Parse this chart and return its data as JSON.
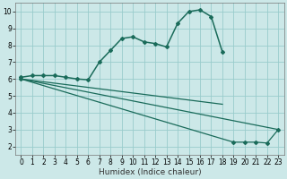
{
  "xlabel": "Humidex (Indice chaleur)",
  "xlim": [
    -0.5,
    23.5
  ],
  "ylim": [
    1.5,
    10.5
  ],
  "bg_color": "#cce8e8",
  "grid_color": "#99cccc",
  "line_color": "#1a6b5a",
  "series": [
    {
      "x": [
        0,
        1,
        2,
        3,
        4,
        5,
        6,
        7,
        8,
        9,
        10,
        11,
        12,
        13,
        14,
        15,
        16,
        17,
        18
      ],
      "y": [
        6.1,
        6.2,
        6.2,
        6.2,
        6.1,
        6.0,
        5.95,
        7.0,
        7.7,
        8.4,
        8.5,
        8.2,
        8.1,
        7.9,
        9.3,
        10.0,
        10.1,
        9.7,
        7.6
      ],
      "marker": "D",
      "markersize": 2.0,
      "linewidth": 1.1,
      "linestyle": "-"
    },
    {
      "x": [
        0,
        18
      ],
      "y": [
        6.0,
        4.5
      ],
      "marker": null,
      "markersize": 0,
      "linewidth": 0.9,
      "linestyle": "-"
    },
    {
      "x": [
        0,
        23
      ],
      "y": [
        6.0,
        3.0
      ],
      "marker": null,
      "markersize": 0,
      "linewidth": 0.9,
      "linestyle": "-"
    },
    {
      "x": [
        0,
        19,
        20,
        21,
        22,
        23
      ],
      "y": [
        6.0,
        2.25,
        2.25,
        2.25,
        2.2,
        3.0
      ],
      "marker": "D",
      "markersize": 2.0,
      "linewidth": 0.9,
      "linestyle": "-"
    }
  ],
  "xticks": [
    0,
    1,
    2,
    3,
    4,
    5,
    6,
    7,
    8,
    9,
    10,
    11,
    12,
    13,
    14,
    15,
    16,
    17,
    18,
    19,
    20,
    21,
    22,
    23
  ],
  "yticks": [
    2,
    3,
    4,
    5,
    6,
    7,
    8,
    9,
    10
  ],
  "tick_fontsize": 5.5,
  "xlabel_fontsize": 6.5
}
